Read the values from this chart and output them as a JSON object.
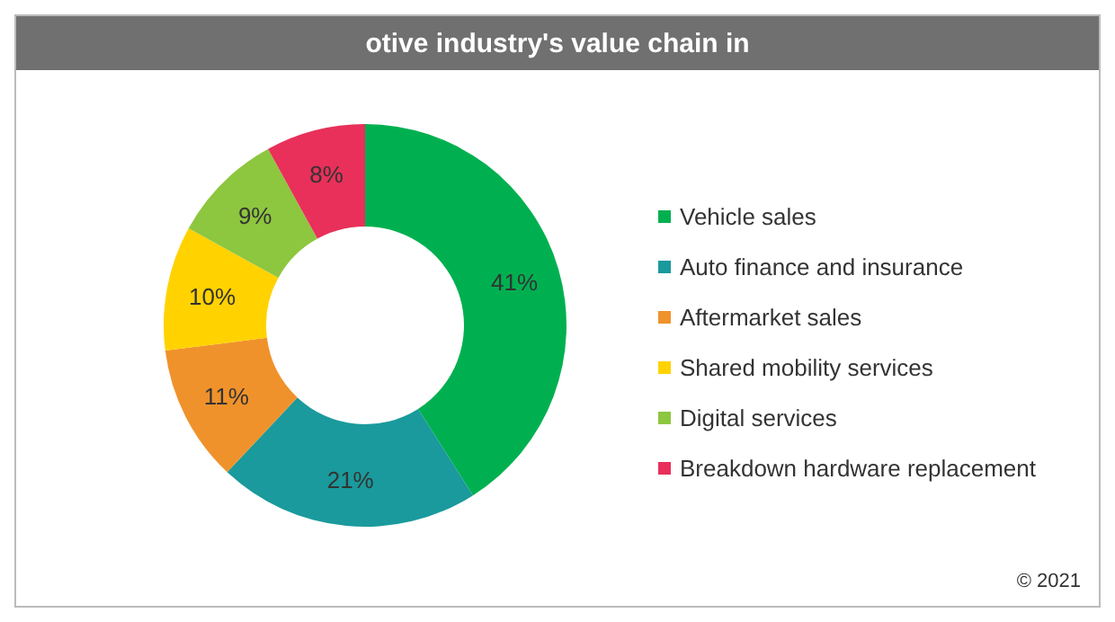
{
  "chart_data": {
    "type": "donut",
    "title": "otive industry's value chain in",
    "categories": [
      "Vehicle sales",
      "Auto finance and insurance",
      "Aftermarket sales",
      "Shared mobility services",
      "Digital services",
      "Breakdown hardware replacement"
    ],
    "values": [
      41,
      21,
      11,
      10,
      9,
      8
    ],
    "colors": [
      "#00b050",
      "#1a9a9c",
      "#f0922b",
      "#ffd200",
      "#8dc63f",
      "#e8305a"
    ],
    "value_labels": [
      "41%",
      "21%",
      "11%",
      "10%",
      "9%",
      "8%"
    ],
    "legend": "right",
    "annotations": [
      "© 2021"
    ]
  }
}
